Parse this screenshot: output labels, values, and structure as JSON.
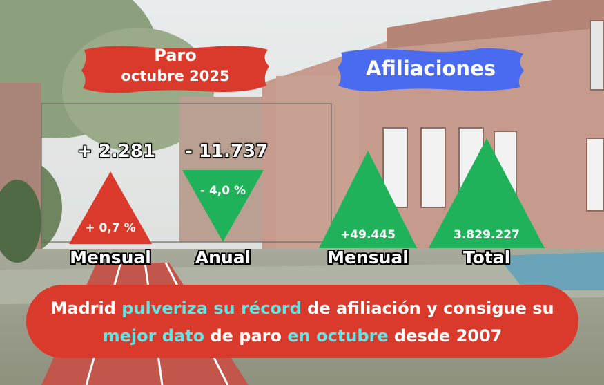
{
  "colors": {
    "red": "#d93a2b",
    "green": "#1fb25a",
    "blue": "#4a6bf0",
    "highlight": "#5ee6e6",
    "white": "#ffffff"
  },
  "paro": {
    "title_line1": "Paro",
    "title_line2": "octubre 2025",
    "mensual": {
      "value": "+ 2.281",
      "percent": "+ 0,7 %",
      "caption": "Mensual",
      "direction": "up"
    },
    "anual": {
      "value": "- 11.737",
      "percent": "- 4,0 %",
      "caption": "Anual",
      "direction": "down"
    }
  },
  "afiliaciones": {
    "title": "Afiliaciones",
    "mensual": {
      "value": "+49.445",
      "caption": "Mensual",
      "direction": "up"
    },
    "total": {
      "value": "3.829.227",
      "caption": "Total",
      "direction": "up"
    }
  },
  "headline": {
    "line1": [
      {
        "text": "Madrid ",
        "hl": false
      },
      {
        "text": "pulveriza su récord",
        "hl": true
      },
      {
        "text": " de afiliación y consigue su",
        "hl": false
      }
    ],
    "line2": [
      {
        "text": "mejor dato",
        "hl": true
      },
      {
        "text": " de paro ",
        "hl": false
      },
      {
        "text": "en octubre",
        "hl": true
      },
      {
        "text": " desde 2007",
        "hl": false
      }
    ]
  }
}
